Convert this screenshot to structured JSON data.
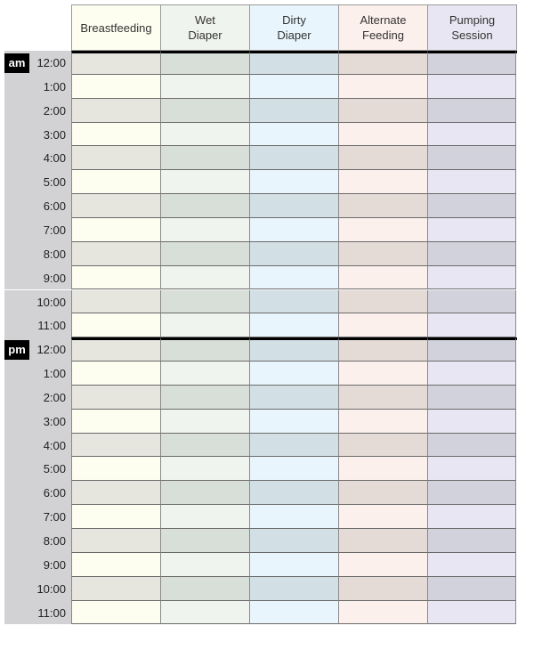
{
  "columns": [
    {
      "label_1": "Breastfeeding",
      "label_2": "",
      "light": "#fdfdf0",
      "dark": "#e6e5de"
    },
    {
      "label_1": "Wet",
      "label_2": "Diaper",
      "light": "#f0f4ee",
      "dark": "#d8dfd8"
    },
    {
      "label_1": "Dirty",
      "label_2": "Diaper",
      "light": "#e8f5fc",
      "dark": "#d2e0e6"
    },
    {
      "label_1": "Alternate",
      "label_2": "Feeding",
      "light": "#fcf0ec",
      "dark": "#e5dbd6"
    },
    {
      "label_1": "Pumping",
      "label_2": "Session",
      "light": "#e8e6f2",
      "dark": "#d2d2dc"
    }
  ],
  "periods": [
    {
      "label": "am",
      "times": [
        "12:00",
        "1:00",
        "2:00",
        "3:00",
        "4:00",
        "5:00",
        "6:00",
        "7:00",
        "8:00",
        "9:00",
        "10:00",
        "11:00"
      ]
    },
    {
      "label": "pm",
      "times": [
        "12:00",
        "1:00",
        "2:00",
        "3:00",
        "4:00",
        "5:00",
        "6:00",
        "7:00",
        "8:00",
        "9:00",
        "10:00",
        "11:00"
      ]
    }
  ]
}
